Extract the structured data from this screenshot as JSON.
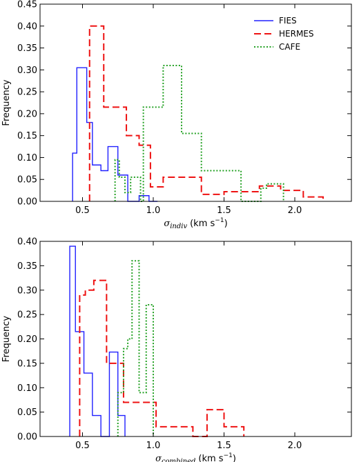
{
  "chart_data": [
    {
      "type": "histogram-step",
      "title": "",
      "xlabel_sym": "σ",
      "xlabel_sub": "indiv",
      "xlabel_unit": "(km s",
      "xlabel_exp": "−1",
      "xlabel_close": ")",
      "ylabel": "Frequency",
      "xlim": [
        0.2,
        2.4
      ],
      "ylim": [
        0,
        0.45
      ],
      "xticks": [
        0.5,
        1.0,
        1.5,
        2.0
      ],
      "xtick_labels": [
        "0.5",
        "1.0",
        "1.5",
        "2.0"
      ],
      "yticks": [
        0,
        0.05,
        0.1,
        0.15,
        0.2,
        0.25,
        0.3,
        0.35,
        0.4,
        0.45
      ],
      "ytick_labels": [
        "0.00",
        "0.05",
        "0.10",
        "0.15",
        "0.20",
        "0.25",
        "0.30",
        "0.35",
        "0.40",
        "0.45"
      ],
      "legend": "top-right",
      "series": [
        {
          "name": "FIES",
          "color": "#1f1fff",
          "dash": "solid",
          "edges": [
            0.43,
            0.46,
            0.53,
            0.57,
            0.63,
            0.68,
            0.75,
            0.82,
            0.9,
            0.97,
            1.03
          ],
          "values": [
            0.11,
            0.305,
            0.18,
            0.083,
            0.07,
            0.125,
            0.06,
            0.0,
            0.013,
            0.0
          ]
        },
        {
          "name": "HERMES",
          "color": "#ee1111",
          "dash": "dashed",
          "edges": [
            0.55,
            0.65,
            0.81,
            0.9,
            0.98,
            1.07,
            1.34,
            1.5,
            1.75,
            1.9,
            2.06,
            2.2
          ],
          "values": [
            0.4,
            0.215,
            0.15,
            0.128,
            0.033,
            0.055,
            0.016,
            0.022,
            0.035,
            0.025,
            0.01
          ]
        },
        {
          "name": "CAFE",
          "color": "#22a022",
          "dash": "dotted",
          "edges": [
            0.73,
            0.76,
            0.8,
            0.84,
            0.91,
            0.93,
            1.07,
            1.2,
            1.34,
            1.62,
            1.76,
            1.8,
            1.92
          ],
          "values": [
            0.095,
            0.055,
            0.02,
            0.055,
            0.0,
            0.215,
            0.31,
            0.155,
            0.07,
            0.0,
            0.03,
            0.04
          ]
        }
      ]
    },
    {
      "type": "histogram-step",
      "title": "",
      "xlabel_sym": "σ",
      "xlabel_sub": "combined",
      "xlabel_unit": "(km s",
      "xlabel_exp": "−1",
      "xlabel_close": ")",
      "ylabel": "Frequency",
      "xlim": [
        0.2,
        2.4
      ],
      "ylim": [
        0,
        0.4
      ],
      "xticks": [
        0.5,
        1.0,
        1.5,
        2.0
      ],
      "xtick_labels": [
        "0.5",
        "1.0",
        "1.5",
        "2.0"
      ],
      "yticks": [
        0,
        0.05,
        0.1,
        0.15,
        0.2,
        0.25,
        0.3,
        0.35,
        0.4
      ],
      "ytick_labels": [
        "0.00",
        "0.05",
        "0.10",
        "0.15",
        "0.20",
        "0.25",
        "0.30",
        "0.35",
        "0.40"
      ],
      "legend": "none",
      "series": [
        {
          "name": "FIES",
          "color": "#1f1fff",
          "dash": "solid",
          "edges": [
            0.41,
            0.45,
            0.51,
            0.57,
            0.63,
            0.69,
            0.75,
            0.8
          ],
          "values": [
            0.39,
            0.215,
            0.13,
            0.043,
            0.0,
            0.173,
            0.043
          ]
        },
        {
          "name": "HERMES",
          "color": "#ee1111",
          "dash": "dashed",
          "edges": [
            0.48,
            0.52,
            0.58,
            0.67,
            0.74,
            0.79,
            0.9,
            1.02,
            1.12,
            1.28,
            1.38,
            1.5,
            1.64
          ],
          "values": [
            0.29,
            0.3,
            0.32,
            0.15,
            0.15,
            0.07,
            0.07,
            0.02,
            0.02,
            0.0,
            0.055,
            0.02
          ]
        },
        {
          "name": "CAFE",
          "color": "#22a022",
          "dash": "dotted",
          "edges": [
            0.75,
            0.79,
            0.82,
            0.85,
            0.9,
            0.95,
            1.0
          ],
          "values": [
            0.09,
            0.18,
            0.2,
            0.36,
            0.09,
            0.27
          ]
        }
      ]
    }
  ]
}
